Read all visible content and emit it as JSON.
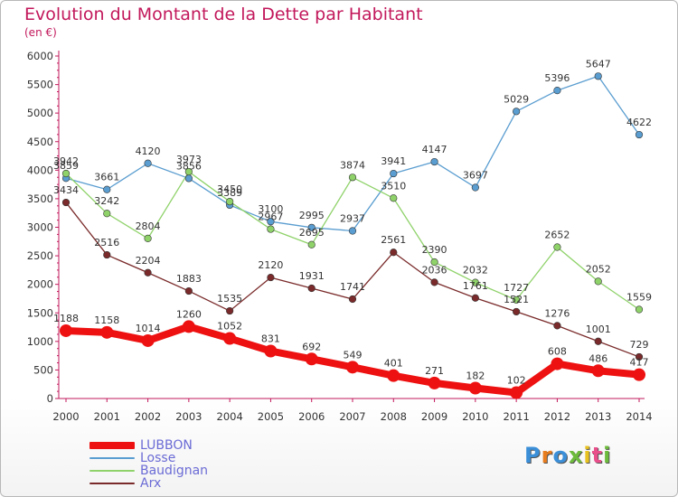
{
  "title": "Evolution du Montant de la Dette par Habitant",
  "subtitle": "(en €)",
  "logo": {
    "text": "Proxiti",
    "letters": [
      {
        "ch": "P",
        "color": "#3b8fd8"
      },
      {
        "ch": "r",
        "color": "#e87d1e"
      },
      {
        "ch": "o",
        "color": "#3b8fd8"
      },
      {
        "ch": "x",
        "color": "#6dbb3c"
      },
      {
        "ch": "i",
        "color": "#e8c21e"
      },
      {
        "ch": "t",
        "color": "#e84e8a"
      },
      {
        "ch": "i",
        "color": "#6dbb3c"
      }
    ]
  },
  "chart_data": {
    "type": "line",
    "title": "Evolution du Montant de la Dette par Habitant",
    "subtitle": "(en €)",
    "x": [
      "2000",
      "2001",
      "2002",
      "2003",
      "2004",
      "2005",
      "2006",
      "2007",
      "2008",
      "2009",
      "2010",
      "2011",
      "2012",
      "2013",
      "2014"
    ],
    "ylim": [
      0,
      6000
    ],
    "yticks": [
      "0",
      "500",
      "1000",
      "1500",
      "2000",
      "2500",
      "3000",
      "3500",
      "4000",
      "4500",
      "5000",
      "5500",
      "6000"
    ],
    "ytick_values": [
      0,
      500,
      1000,
      1500,
      2000,
      2500,
      3000,
      3500,
      4000,
      4500,
      5000,
      5500,
      6000
    ],
    "grid": false,
    "legend_position": "bottom-left",
    "series": [
      {
        "name": "LUBBON",
        "color": "#ee1111",
        "width": "thick",
        "values": [
          1188,
          1158,
          1014,
          1260,
          1052,
          831,
          692,
          549,
          401,
          271,
          182,
          102,
          608,
          486,
          417
        ],
        "labels": [
          "1188",
          "1158",
          "1014",
          "1260",
          "1052",
          "831",
          "692",
          "549",
          "401",
          "271",
          "182",
          "102",
          "608",
          "486",
          "417"
        ]
      },
      {
        "name": "Losse",
        "color": "#5a9dd0",
        "width": "thin",
        "values": [
          3859,
          3661,
          4120,
          3856,
          3389,
          3100,
          2995,
          2937,
          3941,
          4147,
          3697,
          5029,
          5396,
          5647,
          4622
        ],
        "labels": [
          "3859",
          "3661",
          "4120",
          "3856",
          "3389",
          "3100",
          "2995",
          "2937",
          "3941",
          "4147",
          "3697",
          "5029",
          "5396",
          "5647",
          "4622"
        ]
      },
      {
        "name": "Baudignan",
        "color": "#8fd26a",
        "width": "thin",
        "values": [
          3942,
          3242,
          2804,
          3973,
          3450,
          2967,
          2695,
          3874,
          3510,
          2390,
          2032,
          1727,
          2652,
          2052,
          1559
        ],
        "labels": [
          "3942",
          "3242",
          "2804",
          "3973",
          "3450",
          "2967",
          "2695",
          "3874",
          "3510",
          "2390",
          "2032",
          "1727",
          "2652",
          "2052",
          "1559"
        ]
      },
      {
        "name": "Arx",
        "color": "#7a2a2a",
        "width": "thin",
        "values": [
          3434,
          2516,
          2204,
          1883,
          1535,
          2120,
          1931,
          1741,
          2561,
          2036,
          1761,
          1521,
          1276,
          1001,
          729
        ],
        "labels": [
          "3434",
          "2516",
          "2204",
          "1883",
          "1535",
          "2120",
          "1931",
          "1741",
          "2561",
          "2036",
          "1761",
          "1521",
          "1276",
          "1001",
          "729"
        ]
      }
    ]
  }
}
